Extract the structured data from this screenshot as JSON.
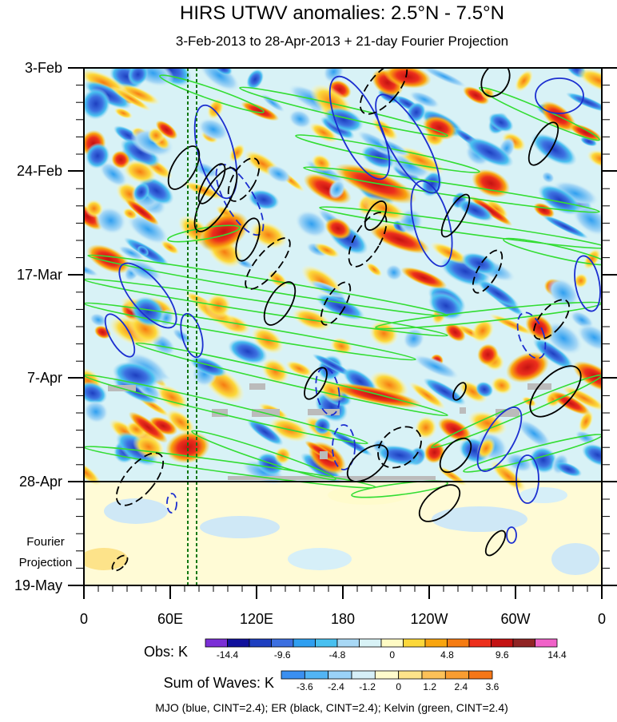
{
  "chart_data": {
    "type": "heatmap",
    "title": "HIRS UTWV anomalies: 2.5°N - 7.5°N",
    "subtitle": "3-Feb-2013 to 28-Apr-2013 + 21-day Fourier Projection",
    "x_ticks": [
      "0",
      "60E",
      "120E",
      "180",
      "120W",
      "60W",
      "0"
    ],
    "y_ticks": [
      "3-Feb",
      "24-Feb",
      "17-Mar",
      "7-Apr",
      "28-Apr",
      "19-May"
    ],
    "projection_label": [
      "Fourier",
      "Projection"
    ],
    "obs_colorbar": {
      "label": "Obs: K",
      "ticks": [
        "-14.4",
        "-9.6",
        "-4.8",
        "0",
        "4.8",
        "9.6",
        "14.4"
      ],
      "colors": [
        "#7b2fd6",
        "#10109c",
        "#1e3fc0",
        "#3c6fe0",
        "#2f9ff0",
        "#48c0f0",
        "#a8d8f5",
        "#d8f2f6",
        "#fffbc4",
        "#fcd83a",
        "#f9a50f",
        "#f67c12",
        "#ec2f1c",
        "#c41212",
        "#902424",
        "#f061c8"
      ]
    },
    "waves_colorbar": {
      "label": "Sum of Waves: K",
      "ticks": [
        "-3.6",
        "-2.4",
        "-1.2",
        "0",
        "1.2",
        "2.4",
        "3.6"
      ],
      "colors": [
        "#3a8ff0",
        "#52b4f4",
        "#9ad2f8",
        "#d6eff8",
        "#fffbcc",
        "#fde38a",
        "#fcc158",
        "#f99d31",
        "#f57617"
      ]
    },
    "footer": "MJO (blue, CINT=2.4); ER (black, CINT=2.4); Kelvin (green, CINT=2.4)",
    "contours": {
      "mjo": {
        "color": "#1c2fd0",
        "cint": 2.4
      },
      "er": {
        "color": "#000000",
        "cint": 2.4
      },
      "kelvin": {
        "color": "#33dd33",
        "cint": 2.4
      }
    },
    "reference_longitudes_deg": [
      80,
      85
    ]
  }
}
